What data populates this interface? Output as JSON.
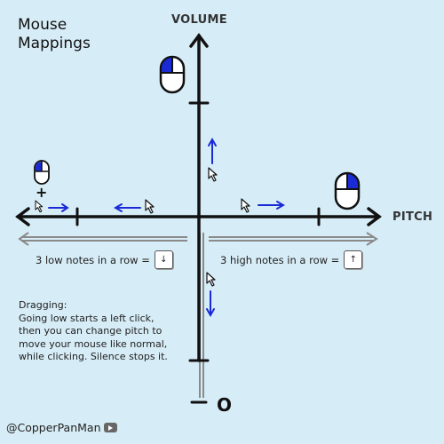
{
  "title": "Mouse\nMappings",
  "axes": {
    "y_label": "VOLUME",
    "x_label": "PITCH",
    "origin_label": "O"
  },
  "plus_sign": "+",
  "low_row": {
    "text": "3 low notes in a row =",
    "key": "↓"
  },
  "high_row": {
    "text": "3 high notes in a row =",
    "key": "↑"
  },
  "dragging_note": "Dragging:\nGoing low starts a left click,\nthen you can change pitch to\nmove your mouse like normal,\nwhile clicking. Silence stops it.",
  "credit": "@CopperPanMan",
  "icons": [
    "mouse-icon",
    "cursor-icon",
    "arrow-icon",
    "keyboard-key-icon",
    "youtube-icon"
  ],
  "colors": {
    "background": "#d6ecf6",
    "axis": "#111111",
    "arrow_blue": "#1a2bd6",
    "mouse_button_fill": "#1a2bd6",
    "gray_guide": "#8a8a8a"
  }
}
